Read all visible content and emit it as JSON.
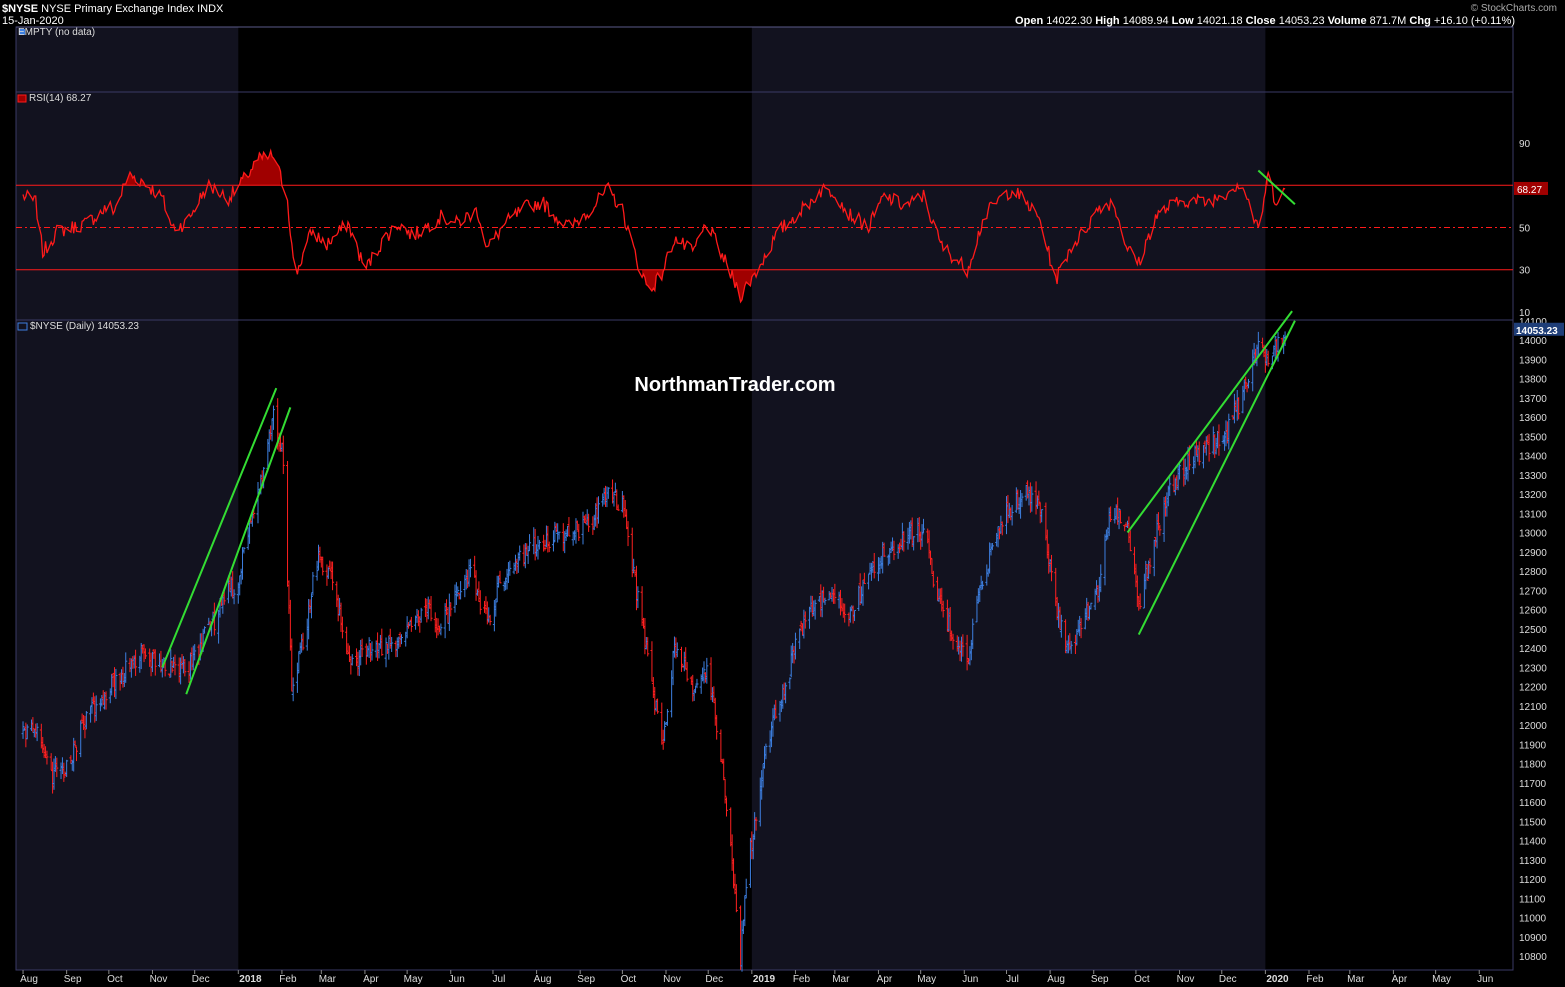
{
  "header": {
    "symbol": "$NYSE",
    "name": "NYSE Primary Exchange Index",
    "exchange": "INDX",
    "date": "15-Jan-2020",
    "credit": "© StockCharts.com",
    "ohlc": {
      "open_label": "Open",
      "open": "14022.30",
      "high_label": "High",
      "high": "14089.94",
      "low_label": "Low",
      "low": "14021.18",
      "close_label": "Close",
      "close": "14053.23",
      "volume_label": "Volume",
      "volume": "871.7M",
      "chg_label": "Chg",
      "chg": "+16.10 (+0.11%)"
    }
  },
  "panels": {
    "empty_label": "EMPTY (no data)",
    "rsi_label": "RSI(14) 68.27",
    "price_label": "$NYSE (Daily) 14053.23"
  },
  "watermark": "NorthmanTrader.com",
  "colors": {
    "background": "#000000",
    "band": "#12121f",
    "panel_border": "#3a3a66",
    "rsi": "#ff1a1a",
    "rsi_fill": "#a00000",
    "bar_up": "#3d7fe0",
    "bar_down": "#ff2020",
    "trendline": "#33dd33",
    "axis_text": "#dddddd"
  },
  "chart_data": [
    {
      "type": "line",
      "title": "RSI(14) 68.27",
      "indicator": "RSI",
      "period": 14,
      "last_value": 68.27,
      "last_value_label": "68.27",
      "ylim": [
        0,
        100
      ],
      "yticks": [
        90,
        50,
        30,
        10
      ],
      "yticklabels": [
        "90",
        "50",
        "30",
        "10"
      ],
      "reference_lines": [
        70,
        50,
        30
      ],
      "anchors": {
        "x": [
          "2017-08-01",
          "2017-08-10",
          "2017-08-15",
          "2017-08-25",
          "2017-09-15",
          "2017-10-01",
          "2017-10-05",
          "2017-10-15",
          "2017-10-25",
          "2017-11-08",
          "2017-11-15",
          "2017-11-25",
          "2017-12-10",
          "2017-12-25",
          "2018-01-01",
          "2018-01-15",
          "2018-01-26",
          "2018-02-05",
          "2018-02-10",
          "2018-02-22",
          "2018-03-05",
          "2018-03-20",
          "2018-04-01",
          "2018-04-15",
          "2018-04-25",
          "2018-05-05",
          "2018-05-25",
          "2018-06-05",
          "2018-06-20",
          "2018-06-27",
          "2018-07-10",
          "2018-07-25",
          "2018-08-05",
          "2018-08-15",
          "2018-08-25",
          "2018-09-10",
          "2018-09-21",
          "2018-10-01",
          "2018-10-11",
          "2018-10-20",
          "2018-10-29",
          "2018-11-07",
          "2018-11-20",
          "2018-11-30",
          "2018-12-10",
          "2018-12-24",
          "2019-01-05",
          "2019-01-20",
          "2019-02-05",
          "2019-02-20",
          "2019-03-01",
          "2019-03-10",
          "2019-03-25",
          "2019-04-05",
          "2019-04-20",
          "2019-05-03",
          "2019-05-15",
          "2019-06-03",
          "2019-06-15",
          "2019-06-25",
          "2019-07-05",
          "2019-07-15",
          "2019-07-25",
          "2019-08-05",
          "2019-08-15",
          "2019-08-25",
          "2019-09-05",
          "2019-09-15",
          "2019-09-25",
          "2019-10-03",
          "2019-10-15",
          "2019-10-25",
          "2019-11-05",
          "2019-11-20",
          "2019-12-03",
          "2019-12-15",
          "2019-12-27",
          "2020-01-03",
          "2020-01-08",
          "2020-01-15"
        ],
        "y": [
          65,
          62,
          38,
          48,
          52,
          60,
          58,
          75,
          72,
          64,
          50,
          52,
          70,
          64,
          69,
          82,
          84,
          64,
          26,
          48,
          42,
          52,
          30,
          45,
          52,
          46,
          55,
          52,
          58,
          40,
          52,
          60,
          62,
          55,
          50,
          60,
          68,
          58,
          35,
          20,
          28,
          45,
          38,
          52,
          38,
          18,
          30,
          48,
          58,
          68,
          67,
          57,
          50,
          65,
          60,
          65,
          42,
          30,
          55,
          63,
          68,
          62,
          53,
          25,
          40,
          48,
          60,
          62,
          40,
          33,
          55,
          60,
          63,
          62,
          66,
          72,
          48,
          75,
          63,
          68.27
        ]
      },
      "annotations": [
        {
          "type": "trendline",
          "color": "green",
          "x": [
            "2019-12-27",
            "2020-01-22"
          ],
          "y": [
            77,
            61
          ]
        }
      ]
    },
    {
      "type": "bar",
      "subtype": "ohlc",
      "title": "$NYSE (Daily) 14053.23",
      "last_value": 14053.23,
      "last_value_label": "14053.23",
      "ylim": [
        10700,
        14150
      ],
      "yticks": [
        10800,
        10900,
        11000,
        11100,
        11200,
        11300,
        11400,
        11500,
        11600,
        11700,
        11800,
        11900,
        12000,
        12100,
        12200,
        12300,
        12400,
        12500,
        12600,
        12700,
        12800,
        12900,
        13000,
        13100,
        13200,
        13300,
        13400,
        13500,
        13600,
        13700,
        13800,
        13900,
        14000,
        14100
      ],
      "yticklabels": [
        "10800",
        "10900",
        "11000",
        "11100",
        "11200",
        "11300",
        "11400",
        "11500",
        "11600",
        "11700",
        "11800",
        "11900",
        "12000",
        "12100",
        "12200",
        "12300",
        "12400",
        "12500",
        "12600",
        "12700",
        "12800",
        "12900",
        "13000",
        "13100",
        "13200",
        "13300",
        "13400",
        "13500",
        "13600",
        "13700",
        "13800",
        "13900",
        "14000",
        "14100"
      ],
      "xlim": [
        "2017-07-27",
        "2020-06-25"
      ],
      "xticks": [
        "2017-08-01",
        "2017-09-01",
        "2017-10-01",
        "2017-11-01",
        "2017-12-01",
        "2018-01-01",
        "2018-02-01",
        "2018-03-01",
        "2018-04-01",
        "2018-05-01",
        "2018-06-01",
        "2018-07-01",
        "2018-08-01",
        "2018-09-01",
        "2018-10-01",
        "2018-11-01",
        "2018-12-01",
        "2019-01-01",
        "2019-02-01",
        "2019-03-01",
        "2019-04-01",
        "2019-05-01",
        "2019-06-01",
        "2019-07-01",
        "2019-08-01",
        "2019-09-01",
        "2019-10-01",
        "2019-11-01",
        "2019-12-01",
        "2020-01-01",
        "2020-02-01",
        "2020-03-01",
        "2020-04-01",
        "2020-05-01",
        "2020-06-01"
      ],
      "xticklabels": [
        "Aug",
        "Sep",
        "Oct",
        "Nov",
        "Dec",
        "2018",
        "Feb",
        "Mar",
        "Apr",
        "May",
        "Jun",
        "Jul",
        "Aug",
        "Sep",
        "Oct",
        "Nov",
        "Dec",
        "2019",
        "Feb",
        "Mar",
        "Apr",
        "May",
        "Jun",
        "Jul",
        "Aug",
        "Sep",
        "Oct",
        "Nov",
        "Dec",
        "2020",
        "Feb",
        "Mar",
        "Apr",
        "May",
        "Jun"
      ],
      "shaded_years": [
        [
          "2017-07-27",
          "2018-01-01"
        ],
        [
          "2019-01-01",
          "2020-01-01"
        ]
      ],
      "anchors": {
        "x": [
          "2017-08-01",
          "2017-08-10",
          "2017-08-21",
          "2017-09-01",
          "2017-09-10",
          "2017-09-20",
          "2017-10-01",
          "2017-10-15",
          "2017-10-25",
          "2017-11-05",
          "2017-11-15",
          "2017-11-25",
          "2017-12-05",
          "2017-12-15",
          "2017-12-25",
          "2018-01-01",
          "2018-01-10",
          "2018-01-26",
          "2018-02-02",
          "2018-02-08",
          "2018-02-20",
          "2018-02-27",
          "2018-03-08",
          "2018-03-23",
          "2018-04-05",
          "2018-04-20",
          "2018-05-03",
          "2018-05-15",
          "2018-05-25",
          "2018-06-06",
          "2018-06-15",
          "2018-06-27",
          "2018-07-10",
          "2018-07-25",
          "2018-08-10",
          "2018-08-25",
          "2018-09-10",
          "2018-09-21",
          "2018-10-01",
          "2018-10-11",
          "2018-10-20",
          "2018-10-29",
          "2018-11-07",
          "2018-11-20",
          "2018-11-30",
          "2018-12-10",
          "2018-12-24",
          "2018-12-28",
          "2019-01-05",
          "2019-01-15",
          "2019-01-25",
          "2019-02-05",
          "2019-02-15",
          "2019-03-01",
          "2019-03-10",
          "2019-03-20",
          "2019-04-05",
          "2019-04-20",
          "2019-05-03",
          "2019-05-15",
          "2019-06-03",
          "2019-06-15",
          "2019-07-01",
          "2019-07-15",
          "2019-07-25",
          "2019-08-05",
          "2019-08-15",
          "2019-08-25",
          "2019-09-05",
          "2019-09-12",
          "2019-09-25",
          "2019-10-03",
          "2019-10-15",
          "2019-10-25",
          "2019-11-05",
          "2019-11-20",
          "2019-12-03",
          "2019-12-15",
          "2019-12-27",
          "2020-01-03",
          "2020-01-08",
          "2020-01-15"
        ],
        "y": [
          11960,
          11990,
          11720,
          11780,
          11950,
          12100,
          12200,
          12290,
          12370,
          12340,
          12300,
          12270,
          12430,
          12550,
          12700,
          12750,
          13050,
          13600,
          13400,
          12150,
          12600,
          12900,
          12750,
          12300,
          12400,
          12420,
          12500,
          12620,
          12500,
          12700,
          12800,
          12550,
          12800,
          12900,
          12960,
          13000,
          13050,
          13200,
          13150,
          12700,
          12300,
          11900,
          12400,
          12200,
          12300,
          11850,
          10800,
          11200,
          11600,
          12000,
          12200,
          12500,
          12650,
          12700,
          12550,
          12700,
          12900,
          12980,
          13020,
          12600,
          12350,
          12800,
          13100,
          13200,
          13150,
          12600,
          12400,
          12550,
          12700,
          13100,
          13050,
          12600,
          13000,
          13200,
          13350,
          13450,
          13500,
          13700,
          13950,
          13920,
          13970,
          14053.23
        ]
      },
      "annotations": [
        {
          "type": "channel",
          "color": "green",
          "upper": {
            "x": [
              "2017-11-08",
              "2018-01-28"
            ],
            "y": [
              12300,
              13750
            ]
          },
          "lower": {
            "x": [
              "2017-11-25",
              "2018-02-07"
            ],
            "y": [
              12160,
              13650
            ]
          }
        },
        {
          "type": "channel",
          "color": "green",
          "upper": {
            "x": [
              "2019-09-25",
              "2020-01-20"
            ],
            "y": [
              13000,
              14150
            ]
          },
          "lower": {
            "x": [
              "2019-10-03",
              "2020-01-22"
            ],
            "y": [
              12470,
              14100
            ]
          }
        }
      ]
    }
  ]
}
